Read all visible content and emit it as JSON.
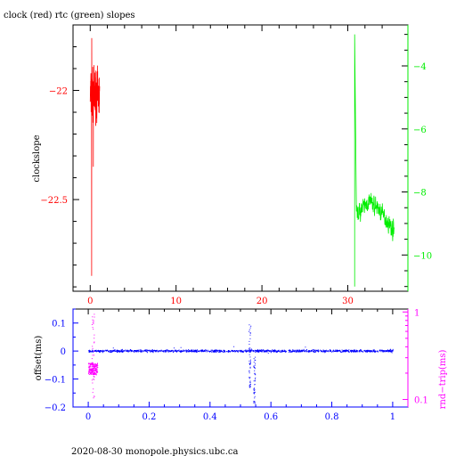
{
  "title": "clock (red) rtc (green) slopes",
  "footer": "2020-08-30  monopole.physics.ubc.ca",
  "colors": {
    "clock": "#ff0000",
    "rtc": "#00ee00",
    "offset": "#0000ff",
    "rndtrip": "#ff00ff",
    "axis": "#000000"
  },
  "chart_data": [
    {
      "type": "line",
      "title": "clock (red) rtc (green) slopes",
      "ylabel": "clockslope",
      "xlim": [
        -2,
        37
      ],
      "ylim": [
        -22.92,
        -21.7
      ],
      "y2lim": [
        -11.15,
        -2.7
      ],
      "x_ticks": [
        "0",
        "10",
        "20",
        "30"
      ],
      "x_tick_values": [
        0,
        10,
        20,
        30
      ],
      "y_ticks": [
        "−22",
        "−22.5"
      ],
      "y_tick_values": [
        -22.0,
        -22.5
      ],
      "y2_ticks": [
        "−4",
        "−6",
        "−8",
        "−10"
      ],
      "y2_tick_values": [
        -4,
        -6,
        -8,
        -10
      ],
      "series": [
        {
          "name": "clock",
          "axis": "left",
          "color": "#ff0000",
          "x_range": [
            0.0,
            1.1
          ],
          "y_center": -22.02,
          "y_band": [
            -22.18,
            -21.85
          ],
          "spike_min": -22.85,
          "spike_max": -21.76
        },
        {
          "name": "rtc",
          "axis": "right",
          "color": "#00ee00",
          "x_range": [
            30.8,
            35.4
          ],
          "start_spike": [
            -11.0,
            -3.0
          ],
          "trend": [
            [
              31.0,
              -8.7
            ],
            [
              32.5,
              -8.3
            ],
            [
              33.5,
              -8.5
            ],
            [
              34.5,
              -8.9
            ],
            [
              35.3,
              -9.2
            ]
          ],
          "noise": 0.45
        }
      ]
    },
    {
      "type": "scatter",
      "ylabel": "offset(ms)",
      "y2label": "rnd−trip(ms)",
      "xlim": [
        -0.05,
        1.05
      ],
      "ylim": [
        -0.2,
        0.15
      ],
      "x_ticks": [
        "0",
        "0.2",
        "0.4",
        "0.6",
        "0.8",
        "1"
      ],
      "x_tick_values": [
        0,
        0.2,
        0.4,
        0.6,
        0.8,
        1.0
      ],
      "y_ticks": [
        "0.1",
        "0",
        "−0.1",
        "−0.2"
      ],
      "y_tick_values": [
        0.1,
        0.0,
        -0.1,
        -0.2
      ],
      "y2_scale": "log",
      "y2lim": [
        0.082,
        1.08
      ],
      "y2_ticks": [
        "1",
        "0.1"
      ],
      "y2_tick_values": [
        1.0,
        0.1
      ],
      "series": [
        {
          "name": "offset",
          "axis": "left",
          "color": "#0000ff",
          "x_range": [
            0.0,
            1.0
          ],
          "y_center": 0.0,
          "noise": 0.006,
          "excursions": [
            {
              "x": 0.53,
              "y_range": [
                -0.15,
                0.13
              ]
            },
            {
              "x": 0.545,
              "y_range": [
                -0.19,
                -0.02
              ]
            }
          ]
        },
        {
          "name": "rnd-trip",
          "axis": "right",
          "color": "#ff00ff",
          "x_range": [
            0.0,
            0.03
          ],
          "y_cluster": [
            0.19,
            0.26
          ],
          "y_spike": [
            0.1,
            0.95
          ]
        }
      ]
    }
  ]
}
